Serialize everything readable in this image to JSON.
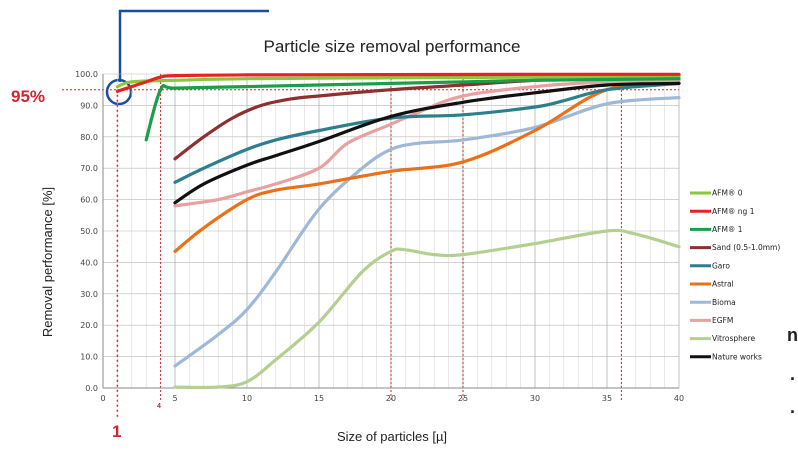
{
  "chart_data": {
    "type": "line",
    "title": "Particle size removal performance",
    "xlabel": "Size of particles  [µ]",
    "ylabel": "Removal performance  [%]",
    "xlim": [
      0,
      40
    ],
    "ylim": [
      0,
      100
    ],
    "x_ticks": [
      "0",
      "5",
      "10",
      "15",
      "20",
      "25",
      "30",
      "35",
      "40"
    ],
    "y_ticks": [
      "0.0",
      "10.0",
      "20.0",
      "30.0",
      "40.0",
      "50.0",
      "60.0",
      "70.0",
      "80.0",
      "90.0",
      "100.0"
    ],
    "grid": true,
    "legend_position": "right",
    "series": [
      {
        "name": "AFM® 0",
        "color": "#8cc63f",
        "x": [
          1,
          2,
          5,
          10,
          20,
          30,
          40
        ],
        "y": [
          96,
          97.5,
          98,
          98.5,
          98.8,
          99,
          99.2
        ]
      },
      {
        "name": "AFM® ng 1",
        "color": "#e52421",
        "x": [
          1,
          2,
          3,
          4,
          5,
          10,
          20,
          30,
          40
        ],
        "y": [
          94.5,
          96,
          97.5,
          99,
          99.5,
          99.7,
          99.8,
          99.9,
          99.9
        ]
      },
      {
        "name": "AFM® 1",
        "color": "#1a9e4a",
        "x": [
          3,
          4,
          5,
          10,
          15,
          20,
          25,
          30,
          40
        ],
        "y": [
          79,
          95,
          95.5,
          96,
          96.5,
          97,
          97.5,
          98,
          98.5
        ]
      },
      {
        "name": "Sand (0.5-1.0mm)",
        "color": "#8e2f30",
        "x": [
          5,
          7,
          9,
          11,
          13,
          15,
          20,
          25,
          30,
          35,
          40
        ],
        "y": [
          73,
          80,
          86,
          90,
          92,
          93,
          95,
          96.5,
          98,
          99,
          99.5
        ]
      },
      {
        "name": "Garo",
        "color": "#2e7f8d",
        "x": [
          5,
          7,
          10,
          12,
          15,
          20,
          25,
          30,
          32,
          35,
          40
        ],
        "y": [
          65.5,
          70,
          76,
          79,
          82,
          86,
          87,
          89.5,
          91.5,
          95,
          97
        ]
      },
      {
        "name": "Astral",
        "color": "#e8711a",
        "x": [
          5,
          7,
          10,
          12,
          15,
          20,
          25,
          30,
          35,
          40
        ],
        "y": [
          43.5,
          51,
          60,
          63,
          65,
          69,
          72,
          82,
          95,
          97
        ]
      },
      {
        "name": "Bioma",
        "color": "#9fb8d8",
        "x": [
          5,
          8,
          10,
          12,
          15,
          18,
          20,
          22,
          25,
          30,
          35,
          40
        ],
        "y": [
          7,
          17,
          25,
          37,
          57,
          70,
          76,
          78,
          79,
          83,
          90.5,
          92.5
        ]
      },
      {
        "name": "EGFM",
        "color": "#e8a1a1",
        "x": [
          5,
          8,
          10,
          12,
          15,
          17,
          20,
          22,
          25,
          30,
          35,
          40
        ],
        "y": [
          58,
          60,
          62.5,
          65,
          70,
          78,
          84,
          88,
          93,
          96,
          97.5,
          98
        ]
      },
      {
        "name": "Vitrosphere",
        "color": "#b4cf8f",
        "x": [
          5,
          8,
          10,
          12,
          15,
          18,
          20,
          21,
          23,
          25,
          30,
          35,
          37,
          40
        ],
        "y": [
          0.3,
          0.3,
          2,
          9,
          21,
          37,
          43.5,
          44,
          42.5,
          42.5,
          46,
          50,
          49,
          45
        ]
      },
      {
        "name": "Nature works",
        "color": "#111111",
        "x": [
          5,
          7,
          10,
          12,
          15,
          20,
          25,
          30,
          35,
          40
        ],
        "y": [
          59,
          65,
          71,
          74,
          78.5,
          86.5,
          91,
          94,
          96.5,
          97
        ]
      }
    ],
    "annotations": [
      {
        "text": "95%",
        "x": 1,
        "y": 95
      },
      {
        "text": "1",
        "x": 1,
        "y": 0
      },
      {
        "text": "4",
        "x": 4,
        "y": 0
      }
    ],
    "reference_lines": {
      "horizontal_y": 95,
      "vertical_x": [
        1,
        4,
        20,
        25,
        36
      ]
    }
  },
  "page_fragments": [
    "n.",
    ".",
    "."
  ],
  "colors": {
    "callout": "#d0262e",
    "highlight_ring": "#1a4ea0"
  }
}
